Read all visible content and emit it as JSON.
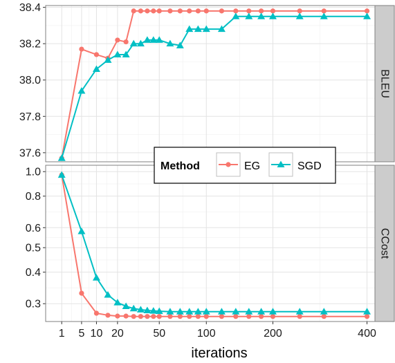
{
  "chart_data": {
    "type": "line",
    "xlabel": "iterations",
    "x_scale": "sqrt",
    "xlim": [
      0,
      420
    ],
    "x_ticks": [
      1,
      5,
      10,
      20,
      50,
      100,
      200,
      400
    ],
    "x_tick_labels": [
      "1",
      "5",
      "10",
      "20",
      "50",
      "100",
      "200",
      "400"
    ],
    "grid": true,
    "legend": {
      "title": "Method",
      "placement": "center",
      "entries": [
        "EG",
        "SGD"
      ]
    },
    "colors": {
      "EG": "#F8766D",
      "SGD": "#00BFC4"
    },
    "panels": [
      {
        "strip_label": "BLEU",
        "y_scale": "linear",
        "ylim": [
          37.55,
          38.41
        ],
        "y_ticks": [
          37.6,
          37.8,
          38.0,
          38.2,
          38.4
        ],
        "y_tick_labels": [
          "37.6",
          "37.8",
          "38.0",
          "38.2",
          "38.4"
        ],
        "series": [
          {
            "name": "EG",
            "marker": "circle",
            "x": [
              1,
              5,
              10,
              15,
              20,
              25,
              30,
              35,
              40,
              45,
              50,
              60,
              70,
              80,
              90,
              100,
              120,
              140,
              160,
              180,
              200,
              250,
              300,
              400
            ],
            "y": [
              37.57,
              38.17,
              38.14,
              38.12,
              38.22,
              38.21,
              38.38,
              38.38,
              38.38,
              38.38,
              38.38,
              38.38,
              38.38,
              38.38,
              38.38,
              38.38,
              38.38,
              38.38,
              38.38,
              38.38,
              38.38,
              38.38,
              38.38,
              38.38
            ]
          },
          {
            "name": "SGD",
            "marker": "triangle",
            "x": [
              1,
              5,
              10,
              15,
              20,
              25,
              30,
              35,
              40,
              45,
              50,
              60,
              70,
              80,
              90,
              100,
              120,
              140,
              160,
              180,
              200,
              250,
              300,
              400
            ],
            "y": [
              37.57,
              37.94,
              38.06,
              38.11,
              38.14,
              38.14,
              38.2,
              38.2,
              38.22,
              38.22,
              38.22,
              38.2,
              38.19,
              38.28,
              38.28,
              38.28,
              38.28,
              38.35,
              38.35,
              38.35,
              38.35,
              38.35,
              38.35,
              38.35
            ]
          }
        ]
      },
      {
        "strip_label": "CCost",
        "y_scale": "log",
        "ylim": [
          0.255,
          1.06
        ],
        "y_ticks": [
          0.3,
          0.4,
          0.5,
          0.6,
          0.8,
          1.0
        ],
        "y_tick_labels": [
          "0.3",
          "0.4",
          "0.5",
          "0.6",
          "0.8",
          "1.0"
        ],
        "series": [
          {
            "name": "EG",
            "marker": "circle",
            "x": [
              1,
              5,
              10,
              15,
              20,
              25,
              30,
              35,
              40,
              45,
              50,
              60,
              70,
              80,
              90,
              100,
              120,
              140,
              160,
              180,
              200,
              250,
              300,
              400
            ],
            "y": [
              0.97,
              0.33,
              0.275,
              0.27,
              0.268,
              0.268,
              0.267,
              0.267,
              0.267,
              0.267,
              0.267,
              0.267,
              0.267,
              0.267,
              0.267,
              0.267,
              0.267,
              0.267,
              0.267,
              0.267,
              0.267,
              0.267,
              0.267,
              0.267
            ]
          },
          {
            "name": "SGD",
            "marker": "triangle",
            "x": [
              1,
              5,
              10,
              15,
              20,
              25,
              30,
              35,
              40,
              45,
              50,
              60,
              70,
              80,
              90,
              100,
              120,
              140,
              160,
              180,
              200,
              250,
              300,
              400
            ],
            "y": [
              0.97,
              0.58,
              0.38,
              0.325,
              0.303,
              0.293,
              0.287,
              0.284,
              0.282,
              0.281,
              0.28,
              0.279,
              0.279,
              0.279,
              0.279,
              0.279,
              0.279,
              0.279,
              0.279,
              0.279,
              0.279,
              0.279,
              0.279,
              0.279
            ]
          }
        ]
      }
    ]
  }
}
